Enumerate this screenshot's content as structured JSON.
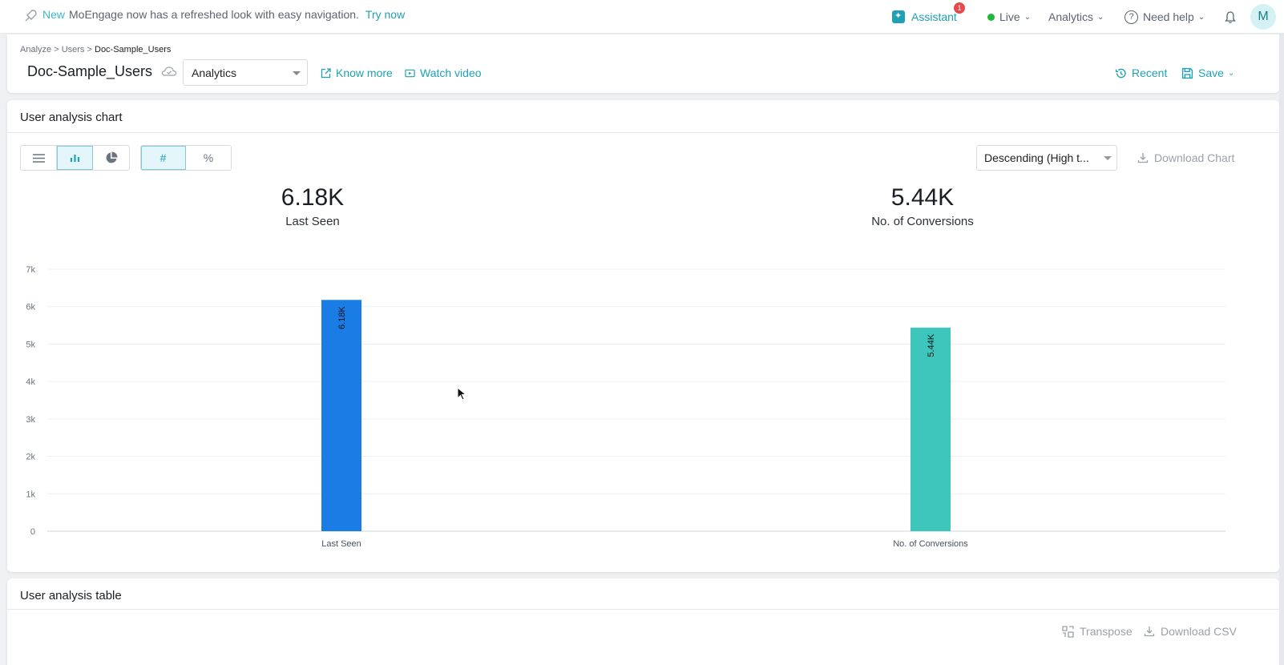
{
  "topbar": {
    "new_label": "New",
    "announcement": "MoEngage now has a refreshed look with easy navigation.",
    "try_now": "Try now",
    "assistant_label": "Assistant",
    "assistant_badge": "1",
    "live_label": "Live",
    "analytics_label": "Analytics",
    "need_help_label": "Need help",
    "avatar_initial": "M",
    "live_color": "#1fb83f"
  },
  "header": {
    "breadcrumb": [
      "Analyze",
      "Users",
      "Doc-Sample_Users"
    ],
    "breadcrumb_sep": ">",
    "title": "Doc-Sample_Users",
    "analysis_select": "Analytics",
    "know_more": "Know more",
    "watch_video": "Watch video",
    "recent": "Recent",
    "save": "Save"
  },
  "chart_card": {
    "title": "User analysis chart",
    "format_buttons": [
      "#",
      "%"
    ],
    "sort_select": "Descending (High t...",
    "download_chart": "Download Chart",
    "metrics": [
      {
        "value": "6.18K",
        "label": "Last Seen"
      },
      {
        "value": "5.44K",
        "label": "No. of Conversions"
      }
    ]
  },
  "chart_data": {
    "type": "bar",
    "categories": [
      "Last Seen",
      "No. of Conversions"
    ],
    "values": [
      6180,
      5440
    ],
    "data_labels": [
      "6.18K",
      "5.44K"
    ],
    "colors": [
      "#1a7de6",
      "#3ec6bd"
    ],
    "y_ticks": [
      "0",
      "1k",
      "2k",
      "3k",
      "4k",
      "5k",
      "6k",
      "7k"
    ],
    "ylim": [
      0,
      7000
    ],
    "grid": true
  },
  "table_card": {
    "title": "User analysis table",
    "transpose": "Transpose",
    "download_csv": "Download CSV"
  },
  "colors": {
    "accent": "#1fa1b3",
    "muted": "#9aa1a9"
  }
}
